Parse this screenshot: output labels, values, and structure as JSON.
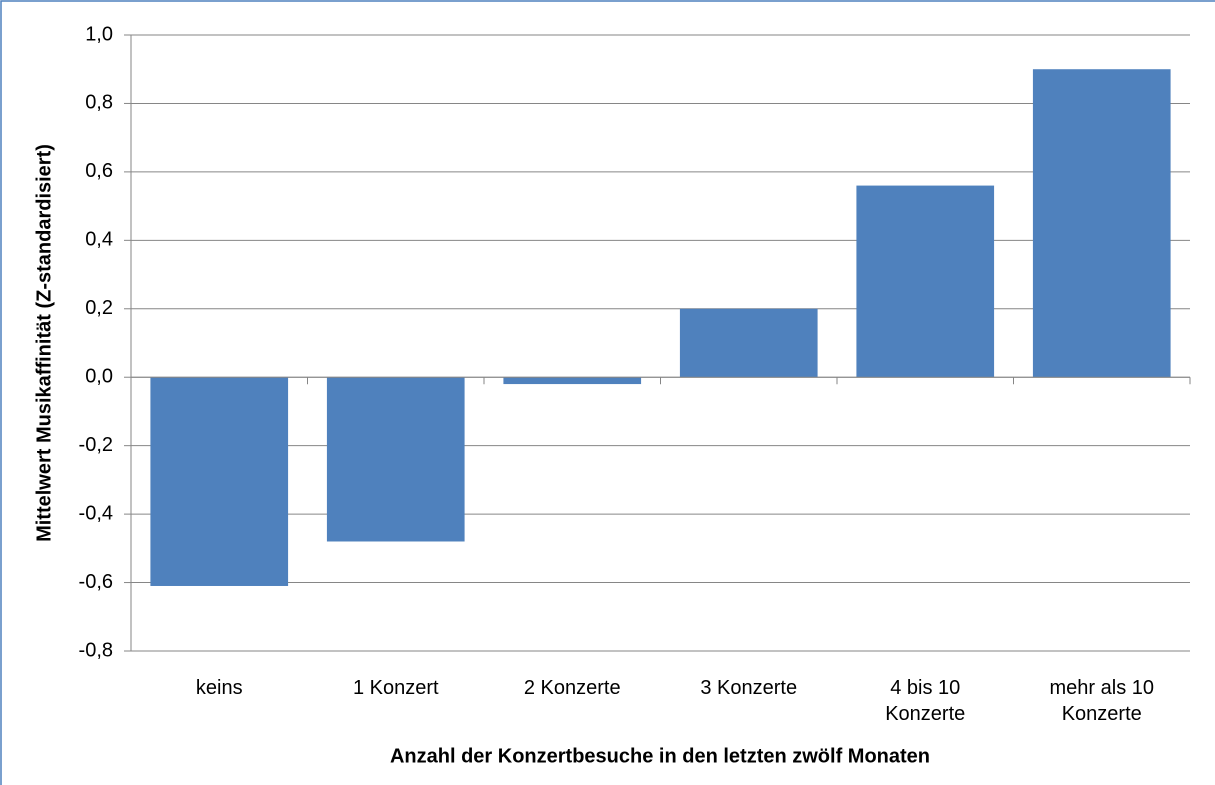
{
  "chart_data": {
    "type": "bar",
    "xlabel": "Anzahl der Konzertbesuche in den letzten zwölf Monaten",
    "ylabel": "Mittelwert Musikaffinität  (Z-standardisiert)",
    "categories": [
      "keins",
      "1 Konzert",
      "2 Konzerte",
      "3 Konzerte",
      "4 bis 10 Konzerte",
      "mehr als 10 Konzerte"
    ],
    "values": [
      -0.61,
      -0.48,
      -0.02,
      0.2,
      0.56,
      0.9
    ],
    "color": "#4f81bd",
    "ylim": [
      -0.8,
      1.0
    ],
    "yticks": [
      {
        "value": -0.8,
        "label": "-0,8"
      },
      {
        "value": -0.6,
        "label": "-0,6"
      },
      {
        "value": -0.4,
        "label": "-0,4"
      },
      {
        "value": -0.2,
        "label": "-0,2"
      },
      {
        "value": 0,
        "label": "0,0"
      },
      {
        "value": 0.2,
        "label": "0,2"
      },
      {
        "value": 0.4,
        "label": "0,4"
      },
      {
        "value": 0.6,
        "label": "0,6"
      },
      {
        "value": 0.8,
        "label": "0,8"
      },
      {
        "value": 1.0,
        "label": "1,0"
      }
    ],
    "grid": true
  }
}
